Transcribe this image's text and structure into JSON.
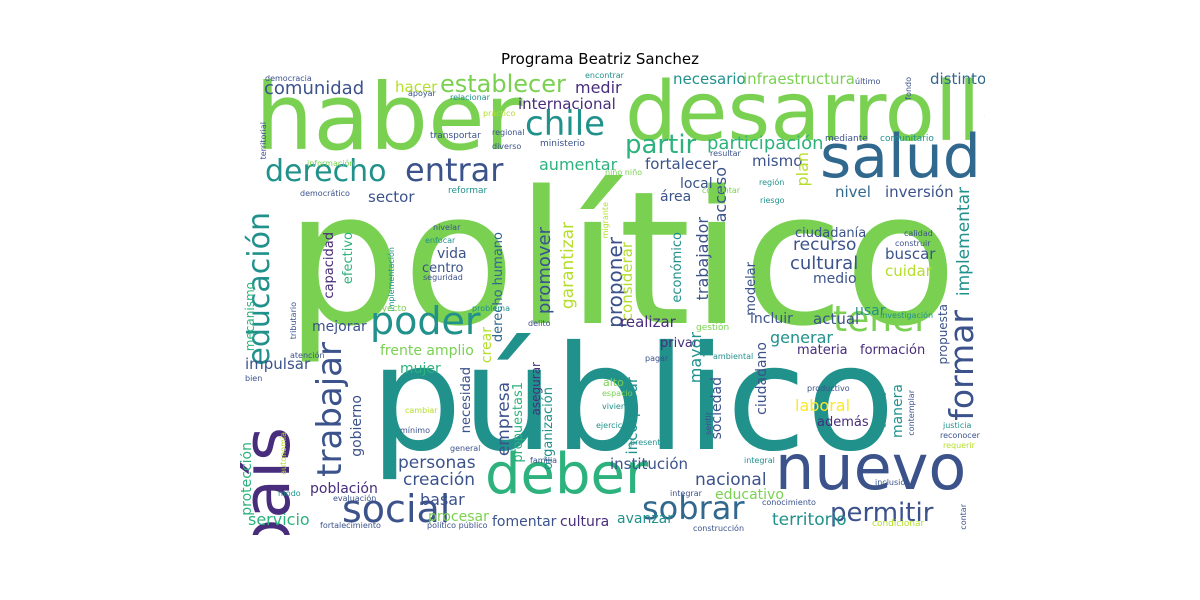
{
  "title": "Programa Beatriz Sanchez",
  "colors": {
    "light_green": "#7ad151",
    "green": "#2db27d",
    "teal": "#21918c",
    "blue": "#3b528b",
    "dark_purple": "#472d7b",
    "blue_slate": "#31688e",
    "yellow": "#fde725",
    "lime": "#b5de2b"
  },
  "words": [
    {
      "text": "político"
    },
    {
      "text": "público"
    },
    {
      "text": "haber"
    },
    {
      "text": "desarrollo"
    },
    {
      "text": "país"
    },
    {
      "text": "nuevo"
    },
    {
      "text": "salud"
    },
    {
      "text": "deber"
    },
    {
      "text": "chile"
    },
    {
      "text": "establecer"
    },
    {
      "text": "poder"
    },
    {
      "text": "tener"
    },
    {
      "text": "social"
    },
    {
      "text": "formar"
    },
    {
      "text": "trabajar"
    },
    {
      "text": "derecho"
    },
    {
      "text": "entrar"
    },
    {
      "text": "educación"
    },
    {
      "text": "sobrar"
    },
    {
      "text": "comunidad"
    },
    {
      "text": "partir"
    },
    {
      "text": "participación"
    },
    {
      "text": "permitir"
    },
    {
      "text": "proponer"
    },
    {
      "text": "promover"
    },
    {
      "text": "hacer"
    },
    {
      "text": "medir"
    },
    {
      "text": "internacional"
    },
    {
      "text": "necesario"
    },
    {
      "text": "infraestructura"
    },
    {
      "text": "distinto"
    },
    {
      "text": "fortalecer"
    },
    {
      "text": "mismo"
    },
    {
      "text": "local"
    },
    {
      "text": "área"
    },
    {
      "text": "aumentar"
    },
    {
      "text": "sector"
    },
    {
      "text": "nivel"
    },
    {
      "text": "inversión"
    },
    {
      "text": "recurso"
    },
    {
      "text": "cultural"
    },
    {
      "text": "medio"
    },
    {
      "text": "buscar"
    },
    {
      "text": "cuidar"
    },
    {
      "text": "implementar"
    },
    {
      "text": "ciudadanía"
    },
    {
      "text": "plan"
    },
    {
      "text": "acceso"
    },
    {
      "text": "trabajador"
    },
    {
      "text": "garantizar"
    },
    {
      "text": "considerar"
    },
    {
      "text": "capacidad"
    },
    {
      "text": "efectivo"
    },
    {
      "text": "vida"
    },
    {
      "text": "centro"
    },
    {
      "text": "derecho humano"
    },
    {
      "text": "económico"
    },
    {
      "text": "modelar"
    },
    {
      "text": "mecanismo"
    },
    {
      "text": "mejorar"
    },
    {
      "text": "realizar"
    },
    {
      "text": "incluir"
    },
    {
      "text": "actual"
    },
    {
      "text": "usar"
    },
    {
      "text": "generar"
    },
    {
      "text": "propuesta"
    },
    {
      "text": "frente amplio"
    },
    {
      "text": "crear"
    },
    {
      "text": "privar"
    },
    {
      "text": "materia"
    },
    {
      "text": "formación"
    },
    {
      "text": "impulsar"
    },
    {
      "text": "gobierno"
    },
    {
      "text": "necesidad"
    },
    {
      "text": "empresa"
    },
    {
      "text": "propuestas1"
    },
    {
      "text": "asegurar"
    },
    {
      "text": "mayor"
    },
    {
      "text": "ciudadano"
    },
    {
      "text": "laboral"
    },
    {
      "text": "además"
    },
    {
      "text": "manera"
    },
    {
      "text": "mujer"
    },
    {
      "text": "organización"
    },
    {
      "text": "incorporar"
    },
    {
      "text": "sociedad"
    },
    {
      "text": "personas"
    },
    {
      "text": "institución"
    },
    {
      "text": "creación"
    },
    {
      "text": "nacional"
    },
    {
      "text": "educativo"
    },
    {
      "text": "territorio"
    },
    {
      "text": "basar"
    },
    {
      "text": "procesar"
    },
    {
      "text": "fomentar"
    },
    {
      "text": "cultura"
    },
    {
      "text": "avanzar"
    },
    {
      "text": "servicio"
    },
    {
      "text": "población"
    },
    {
      "text": "protección"
    },
    {
      "text": "democracia"
    },
    {
      "text": "apoyar"
    },
    {
      "text": "relacionar"
    },
    {
      "text": "encontrar"
    },
    {
      "text": "último"
    },
    {
      "text": "fondo"
    },
    {
      "text": "transportar"
    },
    {
      "text": "regional"
    },
    {
      "text": "diverso"
    },
    {
      "text": "ministerio"
    },
    {
      "text": "práctico"
    },
    {
      "text": "mediante"
    },
    {
      "text": "comunitario"
    },
    {
      "text": "resultar"
    },
    {
      "text": "territorial"
    },
    {
      "text": "información"
    },
    {
      "text": "reformar"
    },
    {
      "text": "democrático"
    },
    {
      "text": "niño niño"
    },
    {
      "text": "conjuntar"
    },
    {
      "text": "región"
    },
    {
      "text": "riesgo"
    },
    {
      "text": "nivelar"
    },
    {
      "text": "enfocar"
    },
    {
      "text": "migrante"
    },
    {
      "text": "calidad"
    },
    {
      "text": "construir"
    },
    {
      "text": "implementación"
    },
    {
      "text": "seguridad"
    },
    {
      "text": "proyecto"
    },
    {
      "text": "problema"
    },
    {
      "text": "delito"
    },
    {
      "text": "gestión"
    },
    {
      "text": "investigación"
    },
    {
      "text": "tributario"
    },
    {
      "text": "atención"
    },
    {
      "text": "pagar"
    },
    {
      "text": "ambiental"
    },
    {
      "text": "bien"
    },
    {
      "text": "productivo"
    },
    {
      "text": "alto"
    },
    {
      "text": "espacio"
    },
    {
      "text": "vivienda"
    },
    {
      "text": "cambiar"
    },
    {
      "text": "colectivo"
    },
    {
      "text": "contemplar"
    },
    {
      "text": "mínimo"
    },
    {
      "text": "ejercicio"
    },
    {
      "text": "sentir"
    },
    {
      "text": "justicia"
    },
    {
      "text": "reconocer"
    },
    {
      "text": "autonomía"
    },
    {
      "text": "general"
    },
    {
      "text": "familia"
    },
    {
      "text": "integral"
    },
    {
      "text": "requerir"
    },
    {
      "text": "presentar"
    },
    {
      "text": "inclusión"
    },
    {
      "text": "modo"
    },
    {
      "text": "evaluación"
    },
    {
      "text": "integrar"
    },
    {
      "text": "conocimiento"
    },
    {
      "text": "condicionar"
    },
    {
      "text": "fortalecimiento"
    },
    {
      "text": "político público"
    },
    {
      "text": "construcción"
    },
    {
      "text": "contar"
    }
  ]
}
